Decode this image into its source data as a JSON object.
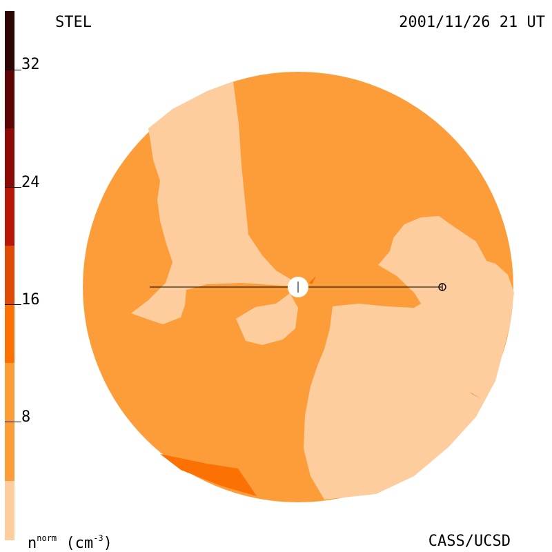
{
  "header": {
    "left": "STEL",
    "right": "2001/11/26 21 UT"
  },
  "footer": {
    "left_base": "n",
    "left_sup": "norm",
    "left_unit_open": " (cm",
    "left_unit_sup": "-3",
    "left_unit_close": ")",
    "right": "CASS/UCSD"
  },
  "colorbar": {
    "ticks": [
      "32",
      "24",
      "16",
      "8"
    ],
    "colors": [
      "#fdcd9d",
      "#fc9d3a",
      "#fc7103",
      "#e04a08",
      "#b71708",
      "#8b0a05",
      "#5c0505",
      "#2c0505"
    ]
  },
  "map_colors": {
    "low": "#fdcd9d",
    "mid": "#fc9d3a",
    "high": "#fc7103",
    "sun": "#ffffff",
    "line": "#000000"
  }
}
